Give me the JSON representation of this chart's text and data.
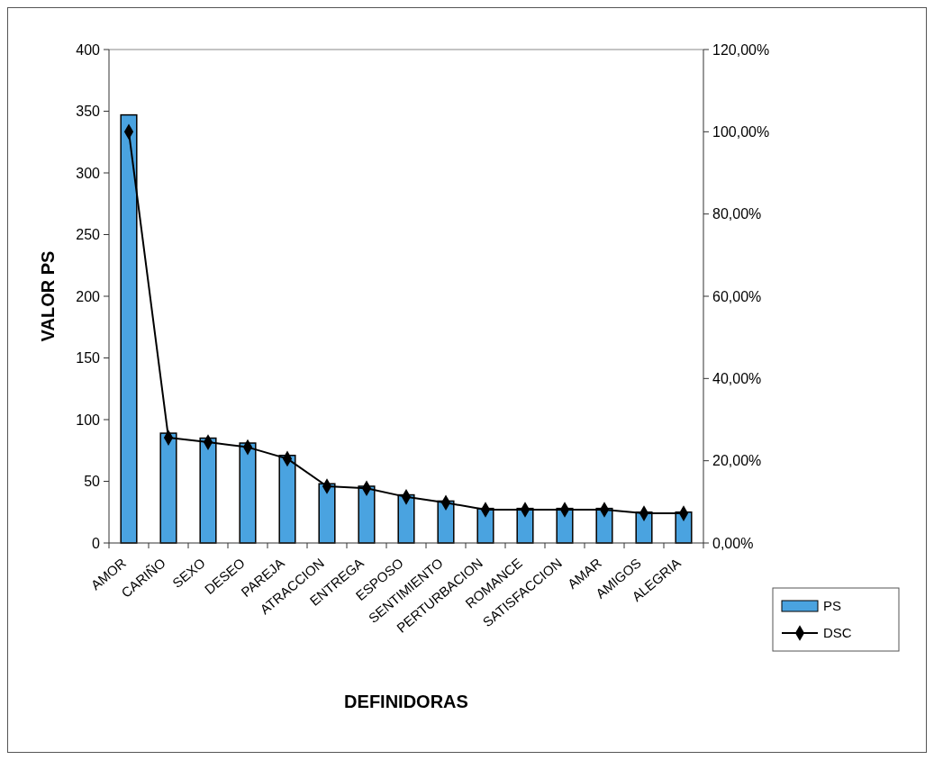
{
  "chart_data": {
    "type": "bar",
    "xlabel": "DEFINIDORAS",
    "ylabel": "VALOR PS",
    "categories": [
      "AMOR",
      "CARIÑO",
      "SEXO",
      "DESEO",
      "PAREJA",
      "ATRACCION",
      "ENTREGA",
      "ESPOSO",
      "SENTIMIENTO",
      "PERTURBACION",
      "ROMANCE",
      "SATISFACCION",
      "AMAR",
      "AMIGOS",
      "ALEGRIA"
    ],
    "series": [
      {
        "name": "PS",
        "color": "#4aa3e0",
        "values": [
          347,
          89,
          85,
          81,
          71,
          48,
          46,
          39,
          34,
          28,
          28,
          28,
          28,
          25,
          25
        ]
      },
      {
        "name": "DSC",
        "type": "line",
        "axis": "y2",
        "color": "#000000",
        "marker": "diamond",
        "values": [
          100,
          25.6,
          24.5,
          23.3,
          20.5,
          13.8,
          13.3,
          11.2,
          9.8,
          8.1,
          8.1,
          8.1,
          8.1,
          7.2,
          7.2
        ]
      }
    ],
    "ylim": [
      0,
      400
    ],
    "yticks": [
      0,
      50,
      100,
      150,
      200,
      250,
      300,
      350,
      400
    ],
    "y2lim": [
      0,
      120
    ],
    "y2ticks": [
      {
        "value": 0,
        "label": "0,00%"
      },
      {
        "value": 20,
        "label": "20,00%"
      },
      {
        "value": 40,
        "label": "40,00%"
      },
      {
        "value": 60,
        "label": "60,00%"
      },
      {
        "value": 80,
        "label": "80,00%"
      },
      {
        "value": 100,
        "label": "100,00%"
      },
      {
        "value": 120,
        "label": "120,00%"
      }
    ],
    "grid": false,
    "legend": "right"
  }
}
